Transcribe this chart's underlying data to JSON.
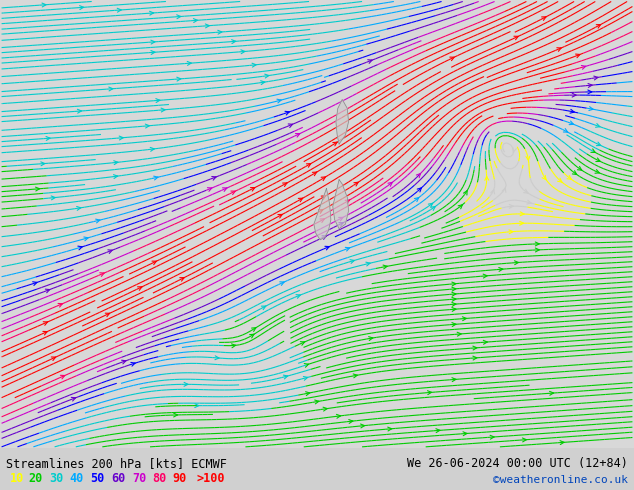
{
  "title_left": "Streamlines 200 hPa [kts] ECMWF",
  "title_right": "We 26-06-2024 00:00 UTC (12+84)",
  "credit": "©weatheronline.co.uk",
  "legend_values": [
    "10",
    "20",
    "30",
    "40",
    "50",
    "60",
    "70",
    "80",
    "90",
    ">100"
  ],
  "legend_colors": [
    "#ffff00",
    "#00cc00",
    "#00cccc",
    "#00aaff",
    "#0000ff",
    "#6600cc",
    "#cc00cc",
    "#ff0066",
    "#ff0000",
    "#ff0000"
  ],
  "speed_levels": [
    0,
    10,
    20,
    30,
    40,
    50,
    60,
    70,
    80,
    90,
    100,
    300
  ],
  "streamline_colors": [
    "#cccccc",
    "#ffff00",
    "#00cc00",
    "#00cccc",
    "#00aaff",
    "#0000ff",
    "#6600cc",
    "#cc00cc",
    "#ff0066",
    "#ff0000",
    "#ff0000"
  ],
  "bg_low_speed": "#d8d8d8",
  "bg_high_speed": "#aaff66",
  "speed_bg_threshold": 30,
  "fig_width": 6.34,
  "fig_height": 4.9,
  "dpi": 100
}
